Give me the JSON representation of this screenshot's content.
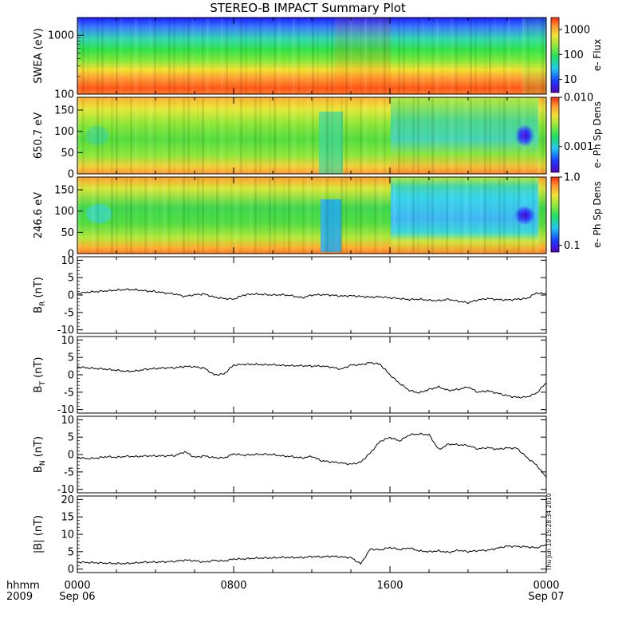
{
  "title": "STEREO-B IMPACT Summary Plot",
  "timestamp": "Thu Jun 10 15:28:34 2010",
  "time_axis": {
    "ticks": [
      {
        "time": "0000",
        "date": "Sep 06"
      },
      {
        "time": "0800",
        "date": ""
      },
      {
        "time": "1600",
        "date": ""
      },
      {
        "time": "0000",
        "date": "Sep 07"
      }
    ],
    "left_label_1": "hhmm",
    "left_label_2": "2009"
  },
  "chart_data": [
    {
      "type": "heatmap",
      "ylabel": "SWEA (eV)",
      "ylog": true,
      "ylim": [
        100,
        2000
      ],
      "yticks": [
        "1000",
        "100"
      ],
      "colorbar": {
        "label": "e- Flux",
        "ticks": [
          "1000",
          "100",
          "10"
        ],
        "log": true,
        "range": [
          3,
          3000
        ]
      },
      "description": "Energy spectrogram: red/orange flux at low energies (~100-300 eV) grading through yellow/green to blue above ~1000 eV"
    },
    {
      "type": "heatmap",
      "ylabel": "650.7 eV",
      "ylim": [
        0,
        180
      ],
      "yticks": [
        "150",
        "100",
        "50",
        "0"
      ],
      "colorbar": {
        "label": "e- Ph Sp Dens",
        "ticks": [
          "0.010",
          "0.001"
        ],
        "log": true,
        "range": [
          0.0003,
          0.01
        ]
      },
      "description": "Pitch angle distribution at 650.7 eV: mostly green/yellow, dark blue spot near 90 deg at end of day"
    },
    {
      "type": "heatmap",
      "ylabel": "246.6 eV",
      "ylim": [
        0,
        180
      ],
      "yticks": [
        "150",
        "100",
        "50",
        "0"
      ],
      "colorbar": {
        "label": "e- Ph Sp Dens",
        "ticks": [
          "1.0",
          "0.1"
        ],
        "log": true,
        "range": [
          0.08,
          1.0
        ]
      },
      "description": "Pitch angle distribution at 246.6 eV: green/yellow before 1600, cyan/blue at mid pitch angles after 1600"
    },
    {
      "type": "line",
      "ylabel": "B_R (nT)",
      "ylabel_main": "B",
      "ylabel_sub": "R",
      "ylabel_unit": "(nT)",
      "ylim": [
        -11,
        11
      ],
      "yticks": [
        10,
        5,
        0,
        -5,
        -10
      ],
      "x": [
        0,
        0.5,
        1,
        1.5,
        2,
        2.5,
        3,
        3.5,
        4,
        4.5,
        5,
        5.5,
        6,
        6.5,
        7,
        7.5,
        8,
        8.5,
        9,
        9.5,
        10,
        10.5,
        11,
        11.5,
        12,
        12.5,
        13,
        13.5,
        14,
        14.5,
        15,
        15.5,
        16,
        16.5,
        17,
        17.5,
        18,
        18.5,
        19,
        19.5,
        20,
        20.5,
        21,
        21.5,
        22,
        22.5,
        23,
        23.5,
        24
      ],
      "y": [
        0.4,
        0.8,
        1.0,
        1.2,
        1.4,
        1.6,
        1.5,
        1.2,
        1.0,
        0.6,
        0.3,
        -0.4,
        0.1,
        0.3,
        -0.6,
        -1.0,
        -1.2,
        0.0,
        0.3,
        0.2,
        0.0,
        0.1,
        -0.2,
        -0.8,
        0.0,
        0.1,
        0.0,
        -0.3,
        -0.2,
        -0.4,
        -0.6,
        -0.5,
        -0.8,
        -1.0,
        -1.3,
        -1.2,
        -1.5,
        -1.6,
        -1.2,
        -1.8,
        -2.2,
        -1.4,
        -1.0,
        -1.3,
        -1.4,
        -1.2,
        -1.0,
        0.6,
        0.3
      ]
    },
    {
      "type": "line",
      "ylabel": "B_T (nT)",
      "ylabel_main": "B",
      "ylabel_sub": "T",
      "ylabel_unit": "(nT)",
      "ylim": [
        -11,
        11
      ],
      "yticks": [
        10,
        5,
        0,
        -5,
        -10
      ],
      "x": [
        0,
        0.5,
        1,
        1.5,
        2,
        2.5,
        3,
        3.5,
        4,
        4.5,
        5,
        5.5,
        6,
        6.5,
        7,
        7.5,
        8,
        8.5,
        9,
        9.5,
        10,
        10.5,
        11,
        11.5,
        12,
        12.5,
        13,
        13.5,
        14,
        14.5,
        15,
        15.5,
        16,
        16.5,
        17,
        17.5,
        18,
        18.5,
        19,
        19.5,
        20,
        20.5,
        21,
        21.5,
        22,
        22.5,
        23,
        23.5,
        24
      ],
      "y": [
        2.3,
        2.0,
        1.8,
        1.6,
        1.3,
        1.0,
        1.1,
        1.6,
        1.8,
        2.0,
        2.0,
        2.4,
        2.3,
        1.9,
        0.0,
        0.2,
        2.8,
        3.0,
        3.0,
        2.9,
        2.9,
        2.7,
        2.6,
        2.6,
        2.5,
        2.5,
        2.2,
        1.6,
        2.8,
        2.9,
        3.5,
        3.0,
        0.0,
        -2.5,
        -4.5,
        -5.2,
        -4.2,
        -3.5,
        -4.5,
        -4.2,
        -3.5,
        -5.0,
        -4.6,
        -5.3,
        -6.0,
        -6.5,
        -6.4,
        -5.3,
        -2.3
      ]
    },
    {
      "type": "line",
      "ylabel": "B_N (nT)",
      "ylabel_main": "B",
      "ylabel_sub": "N",
      "ylabel_unit": "(nT)",
      "ylim": [
        -11,
        11
      ],
      "yticks": [
        10,
        5,
        0,
        -5,
        -10
      ],
      "x": [
        0,
        0.5,
        1,
        1.5,
        2,
        2.5,
        3,
        3.5,
        4,
        4.5,
        5,
        5.5,
        6,
        6.5,
        7,
        7.5,
        8,
        8.5,
        9,
        9.5,
        10,
        10.5,
        11,
        11.5,
        12,
        12.5,
        13,
        13.5,
        14,
        14.5,
        15,
        15.5,
        16,
        16.5,
        17,
        17.5,
        18,
        18.5,
        19,
        19.5,
        20,
        20.5,
        21,
        21.5,
        22,
        22.5,
        23,
        23.5,
        24
      ],
      "y": [
        -0.8,
        -1.2,
        -1.0,
        -0.6,
        -0.8,
        -0.5,
        -0.6,
        -0.4,
        -0.4,
        -0.4,
        -0.3,
        0.8,
        -0.8,
        -0.4,
        -0.9,
        -1.0,
        0.2,
        -0.2,
        0.0,
        0.1,
        0.0,
        -0.4,
        -0.6,
        -1.0,
        -0.5,
        -1.8,
        -2.1,
        -2.4,
        -2.8,
        -2.2,
        0.5,
        3.8,
        4.9,
        3.9,
        5.7,
        5.9,
        5.7,
        1.4,
        3.0,
        2.8,
        2.6,
        1.6,
        2.0,
        1.5,
        1.9,
        1.8,
        -0.8,
        -3.0,
        -6.5
      ]
    },
    {
      "type": "line",
      "ylabel": "|B| (nT)",
      "ylabel_main": "|B|",
      "ylabel_sub": "",
      "ylabel_unit": "(nT)",
      "ylim": [
        -1,
        21
      ],
      "yticks": [
        20,
        15,
        10,
        5,
        0
      ],
      "x": [
        0,
        0.5,
        1,
        1.5,
        2,
        2.5,
        3,
        3.5,
        4,
        4.5,
        5,
        5.5,
        6,
        6.5,
        7,
        7.5,
        8,
        8.5,
        9,
        9.5,
        10,
        10.5,
        11,
        11.5,
        12,
        12.5,
        13,
        13.5,
        14,
        14.5,
        15,
        15.5,
        16,
        16.5,
        17,
        17.5,
        18,
        18.5,
        19,
        19.5,
        20,
        20.5,
        21,
        21.5,
        22,
        22.5,
        23,
        23.5,
        24
      ],
      "y": [
        2.0,
        1.9,
        1.8,
        1.7,
        1.6,
        1.6,
        1.8,
        2.0,
        2.0,
        2.1,
        2.2,
        2.6,
        2.4,
        2.0,
        2.5,
        2.3,
        2.9,
        2.9,
        3.1,
        3.2,
        3.2,
        3.4,
        3.3,
        3.3,
        3.6,
        3.5,
        3.7,
        3.5,
        3.3,
        1.5,
        5.8,
        5.5,
        6.2,
        5.6,
        6.1,
        5.2,
        5.0,
        5.2,
        4.8,
        5.4,
        5.0,
        5.3,
        5.4,
        6.0,
        6.6,
        6.5,
        6.4,
        6.1,
        7.0
      ]
    }
  ]
}
